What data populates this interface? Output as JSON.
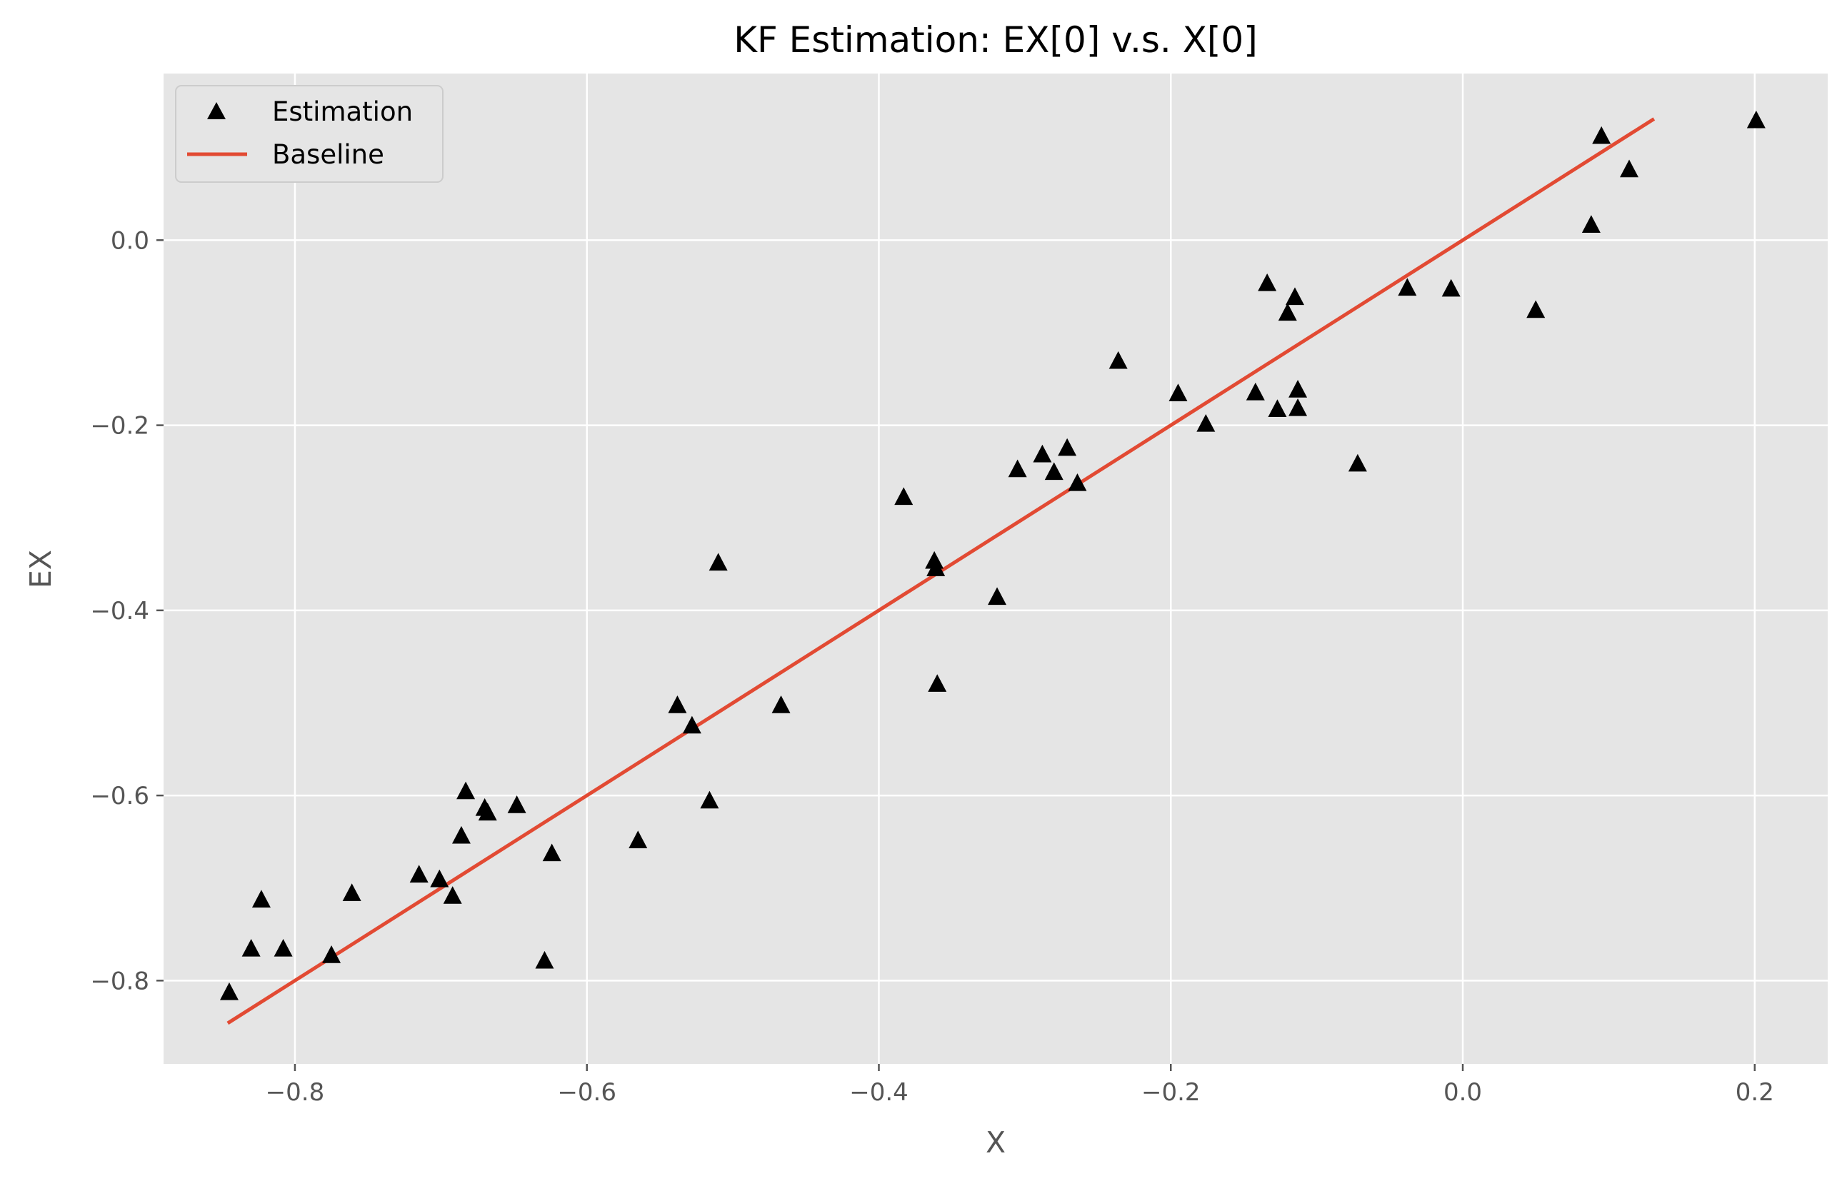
{
  "chart_data": {
    "type": "scatter",
    "title": "KF Estimation: EX[0] v.s. X[0]",
    "xlabel": "X",
    "ylabel": "EX",
    "xlim": [
      -0.89,
      0.25
    ],
    "ylim": [
      -0.89,
      0.18
    ],
    "xticks": [
      -0.8,
      -0.6,
      -0.4,
      -0.2,
      0.0,
      0.2
    ],
    "xtick_labels": [
      "−0.8",
      "−0.6",
      "−0.4",
      "−0.2",
      "0.0",
      "0.2"
    ],
    "yticks": [
      -0.8,
      -0.6,
      -0.4,
      -0.2,
      0.0
    ],
    "ytick_labels": [
      "−0.8",
      "−0.6",
      "−0.4",
      "−0.2",
      "0.0"
    ],
    "grid": true,
    "legend_position": "top-left",
    "series": [
      {
        "name": "Estimation",
        "kind": "scatter",
        "marker": "triangle",
        "color": "#000000",
        "points": [
          [
            -0.845,
            -0.812
          ],
          [
            -0.83,
            -0.765
          ],
          [
            -0.823,
            -0.712
          ],
          [
            -0.808,
            -0.765
          ],
          [
            -0.775,
            -0.772
          ],
          [
            -0.761,
            -0.705
          ],
          [
            -0.715,
            -0.685
          ],
          [
            -0.701,
            -0.69
          ],
          [
            -0.692,
            -0.708
          ],
          [
            -0.686,
            -0.643
          ],
          [
            -0.683,
            -0.595
          ],
          [
            -0.67,
            -0.613
          ],
          [
            -0.668,
            -0.618
          ],
          [
            -0.648,
            -0.61
          ],
          [
            -0.629,
            -0.778
          ],
          [
            -0.624,
            -0.662
          ],
          [
            -0.565,
            -0.648
          ],
          [
            -0.538,
            -0.502
          ],
          [
            -0.528,
            -0.524
          ],
          [
            -0.516,
            -0.605
          ],
          [
            -0.51,
            -0.348
          ],
          [
            -0.467,
            -0.502
          ],
          [
            -0.383,
            -0.277
          ],
          [
            -0.362,
            -0.346
          ],
          [
            -0.361,
            -0.354
          ],
          [
            -0.36,
            -0.479
          ],
          [
            -0.319,
            -0.385
          ],
          [
            -0.305,
            -0.247
          ],
          [
            -0.288,
            -0.231
          ],
          [
            -0.28,
            -0.25
          ],
          [
            -0.271,
            -0.224
          ],
          [
            -0.264,
            -0.262
          ],
          [
            -0.236,
            -0.13
          ],
          [
            -0.195,
            -0.165
          ],
          [
            -0.176,
            -0.198
          ],
          [
            -0.142,
            -0.164
          ],
          [
            -0.134,
            -0.046
          ],
          [
            -0.127,
            -0.182
          ],
          [
            -0.12,
            -0.078
          ],
          [
            -0.115,
            -0.061
          ],
          [
            -0.113,
            -0.161
          ],
          [
            -0.113,
            -0.181
          ],
          [
            -0.072,
            -0.241
          ],
          [
            -0.038,
            -0.051
          ],
          [
            -0.008,
            -0.052
          ],
          [
            0.05,
            -0.075
          ],
          [
            0.088,
            0.017
          ],
          [
            0.095,
            0.113
          ],
          [
            0.114,
            0.077
          ],
          [
            0.201,
            0.13
          ]
        ]
      },
      {
        "name": "Baseline",
        "kind": "line",
        "color": "#e24a33",
        "points": [
          [
            -0.845,
            -0.845
          ],
          [
            0.13,
            0.13
          ]
        ]
      }
    ]
  },
  "colors": {
    "axes_background": "#e5e5e5",
    "grid": "#ffffff",
    "tick_label": "#555555",
    "title": "#000000"
  }
}
